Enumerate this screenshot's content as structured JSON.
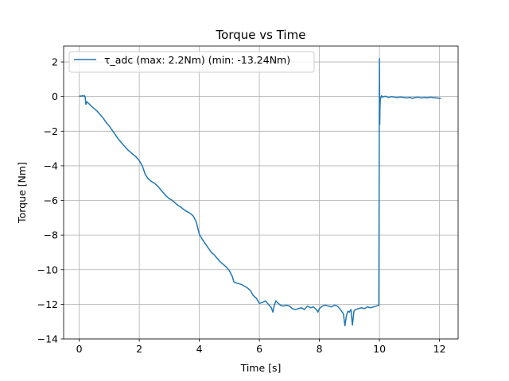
{
  "chart_data": {
    "type": "line",
    "title": "Torque vs Time",
    "xlabel": "Time [s]",
    "ylabel": "Torque [Nm]",
    "xlim": [
      -0.52,
      12.62
    ],
    "ylim": [
      -14,
      2.92
    ],
    "xticks": [
      0,
      2,
      4,
      6,
      8,
      10,
      12
    ],
    "yticks": [
      2,
      0,
      -2,
      -4,
      -6,
      -8,
      -10,
      -12,
      -14
    ],
    "grid": true,
    "legend_position": "top-left",
    "series_color": "#1f77b4",
    "series": [
      {
        "name": "τ_adc (max: 2.2Nm) (min: -13.24Nm)",
        "x": [
          0.0,
          0.05,
          0.1,
          0.15,
          0.18,
          0.2,
          0.22,
          0.25,
          0.3,
          0.35,
          0.4,
          0.5,
          0.6,
          0.7,
          0.8,
          0.9,
          1.0,
          1.1,
          1.2,
          1.3,
          1.4,
          1.5,
          1.6,
          1.7,
          1.8,
          1.9,
          2.0,
          2.1,
          2.2,
          2.3,
          2.4,
          2.5,
          2.6,
          2.7,
          2.8,
          2.9,
          3.0,
          3.1,
          3.2,
          3.3,
          3.4,
          3.5,
          3.6,
          3.7,
          3.8,
          3.9,
          3.95,
          4.0,
          4.05,
          4.1,
          4.2,
          4.3,
          4.4,
          4.5,
          4.6,
          4.7,
          4.8,
          4.9,
          5.0,
          5.1,
          5.15,
          5.2,
          5.3,
          5.4,
          5.5,
          5.6,
          5.7,
          5.8,
          5.9,
          6.0,
          6.1,
          6.2,
          6.3,
          6.4,
          6.45,
          6.5,
          6.55,
          6.6,
          6.7,
          6.8,
          6.9,
          7.0,
          7.1,
          7.2,
          7.3,
          7.4,
          7.5,
          7.6,
          7.7,
          7.8,
          7.9,
          7.95,
          8.0,
          8.1,
          8.2,
          8.3,
          8.4,
          8.5,
          8.6,
          8.7,
          8.8,
          8.85,
          8.9,
          8.95,
          9.0,
          9.05,
          9.1,
          9.15,
          9.2,
          9.3,
          9.4,
          9.5,
          9.6,
          9.7,
          9.8,
          9.9,
          9.98,
          10.0,
          10.01,
          10.02,
          10.03,
          10.05,
          10.07,
          10.1,
          10.15,
          10.2,
          10.3,
          10.4,
          10.5,
          10.6,
          10.7,
          10.8,
          10.9,
          11.0,
          11.1,
          11.2,
          11.3,
          11.4,
          11.5,
          11.6,
          11.7,
          11.8,
          11.9,
          12.0,
          12.05
        ],
        "values": [
          0.03,
          0.02,
          0.05,
          0.03,
          0.05,
          -0.05,
          -0.45,
          -0.3,
          -0.38,
          -0.45,
          -0.55,
          -0.7,
          -0.85,
          -1.05,
          -1.25,
          -1.5,
          -1.7,
          -1.95,
          -2.2,
          -2.45,
          -2.65,
          -2.85,
          -3.05,
          -3.2,
          -3.35,
          -3.5,
          -3.7,
          -4.0,
          -4.5,
          -4.75,
          -4.9,
          -5.0,
          -5.15,
          -5.35,
          -5.55,
          -5.75,
          -5.9,
          -6.0,
          -6.15,
          -6.3,
          -6.4,
          -6.55,
          -6.65,
          -6.75,
          -6.9,
          -7.25,
          -7.6,
          -7.95,
          -8.1,
          -8.25,
          -8.5,
          -8.75,
          -9.0,
          -9.15,
          -9.35,
          -9.55,
          -9.7,
          -9.85,
          -10.05,
          -10.4,
          -10.7,
          -10.75,
          -10.8,
          -10.85,
          -10.95,
          -11.05,
          -11.2,
          -11.5,
          -11.65,
          -11.95,
          -11.9,
          -11.8,
          -12.0,
          -12.2,
          -12.45,
          -12.05,
          -11.8,
          -11.9,
          -12.05,
          -12.1,
          -12.05,
          -12.1,
          -12.25,
          -12.3,
          -12.25,
          -12.2,
          -12.3,
          -12.1,
          -12.2,
          -12.15,
          -12.3,
          -12.45,
          -12.25,
          -12.1,
          -12.05,
          -12.1,
          -12.15,
          -12.05,
          -12.1,
          -12.3,
          -12.55,
          -13.24,
          -12.65,
          -12.4,
          -12.45,
          -12.3,
          -13.2,
          -12.4,
          -12.3,
          -12.25,
          -12.2,
          -12.25,
          -12.15,
          -12.2,
          -12.15,
          -12.1,
          -12.05,
          2.2,
          -1.6,
          -0.5,
          -0.15,
          -0.05,
          0.05,
          -0.02,
          0.0,
          0.02,
          -0.05,
          0.0,
          -0.03,
          -0.05,
          -0.02,
          -0.05,
          -0.08,
          -0.05,
          -0.1,
          -0.05,
          -0.03,
          -0.08,
          -0.05,
          -0.07,
          -0.03,
          -0.06,
          -0.08,
          -0.1,
          -0.12
        ]
      }
    ]
  }
}
